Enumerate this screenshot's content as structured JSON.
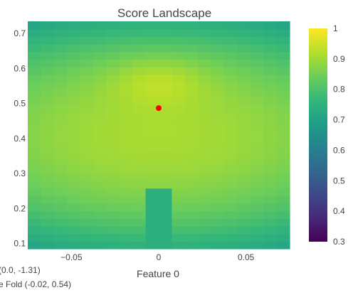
{
  "chart_data": {
    "type": "heatmap",
    "title": "Score Landscape",
    "xlabel": "Feature 0",
    "ylabel": "",
    "xlim": [
      -0.075,
      0.075
    ],
    "ylim": [
      0.085,
      0.735
    ],
    "x_ticks": [
      -0.05,
      0,
      0.05
    ],
    "x_tick_labels": [
      "−0.05",
      "0",
      "0.05"
    ],
    "y_ticks": [
      0.1,
      0.2,
      0.3,
      0.4,
      0.5,
      0.6,
      0.7
    ],
    "y_tick_labels": [
      "0.1",
      "0.2",
      "0.3",
      "0.4",
      "0.5",
      "0.6",
      "0.7"
    ],
    "grid": false,
    "colorscale": "Viridis",
    "colorbar": {
      "min": 0.3,
      "max": 1.0,
      "ticks": [
        0.3,
        0.4,
        0.5,
        0.6,
        0.7,
        0.8,
        0.9,
        1.0
      ],
      "tick_labels": [
        "0.3",
        "0.4",
        "0.5",
        "0.6",
        "0.7",
        "0.8",
        "0.9",
        "1"
      ]
    },
    "grid_x": {
      "start": -0.075,
      "end": 0.075,
      "count": 20
    },
    "grid_y": {
      "start": 0.085,
      "end": 0.735,
      "count": 30
    },
    "surface": {
      "base": 0.91,
      "peak_center": [
        0.0,
        0.57
      ],
      "peak_radius": [
        0.028,
        0.07
      ],
      "peak_height": 0.06,
      "x_falloff": 7.5,
      "y_falloff": 1.6,
      "valley_x_halfwidth": 0.004,
      "valley_y_max": 0.265,
      "valley_value": 0.74
    },
    "point": {
      "x": 0.0,
      "y": 0.487,
      "color": "#ff0000"
    },
    "legend_entries": [
      "(0.0, -1.31)",
      "e Fold (-0.02, 0.54)"
    ]
  }
}
